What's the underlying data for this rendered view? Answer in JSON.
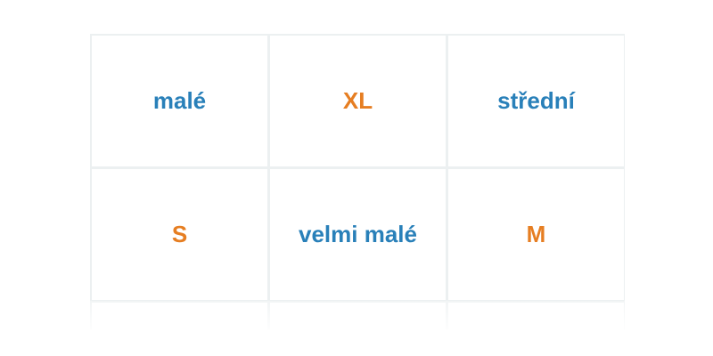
{
  "colors": {
    "blue": "#2980b9",
    "orange": "#e67e22",
    "border": "#ecf0f1"
  },
  "cells": [
    {
      "label": "malé",
      "color": "blue"
    },
    {
      "label": "XL",
      "color": "orange"
    },
    {
      "label": "střední",
      "color": "blue"
    },
    {
      "label": "S",
      "color": "orange"
    },
    {
      "label": "velmi malé",
      "color": "blue"
    },
    {
      "label": "M",
      "color": "orange"
    }
  ]
}
